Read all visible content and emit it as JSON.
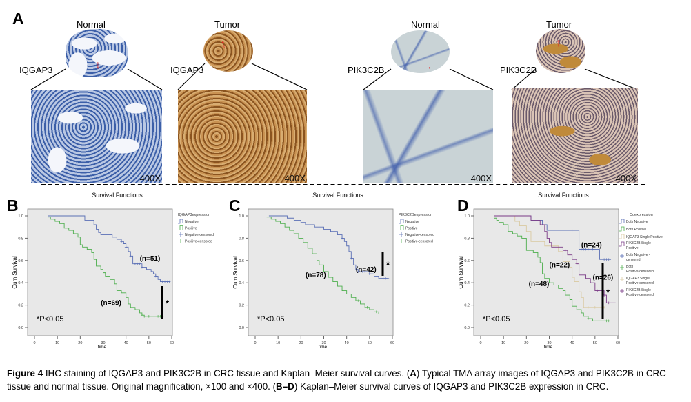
{
  "panel_a": {
    "label": "A",
    "images": [
      {
        "title": "Normal",
        "marker": "IQGAP3",
        "magnification": "400X",
        "tissue": "normal"
      },
      {
        "title": "Tumor",
        "marker": "IQGAP3",
        "magnification": "400X",
        "tissue": "tumor"
      },
      {
        "title": "Normal",
        "marker": "PIK3C2B",
        "magnification": "400X",
        "tissue": "normal"
      },
      {
        "title": "Tumor",
        "marker": "PIK3C2B",
        "magnification": "400X",
        "tissue": "tumor"
      }
    ]
  },
  "colors": {
    "blue": "#5a6fb5",
    "green": "#4cae4c",
    "tan": "#d9c9a0",
    "purple": "#7a3a86",
    "plot_bg": "#e8e8e8"
  },
  "chart_data": [
    {
      "panel": "B",
      "type": "line",
      "title": "Survival Functions",
      "xlabel": "time",
      "ylabel": "Cum Survival",
      "xlim": [
        0,
        60
      ],
      "ylim": [
        0,
        1
      ],
      "xticks": [
        "0",
        "10",
        "20",
        "30",
        "40",
        "50",
        "60"
      ],
      "yticks": [
        "0.0",
        "0.2",
        "0.4",
        "0.6",
        "0.8",
        "1.0"
      ],
      "legend_title": "IQGAP3expression",
      "legend": [
        "Negative",
        "Positive",
        "Negative-censored",
        "Positive-censored"
      ],
      "annotation_p": "*P<0.05",
      "significance": "*",
      "series": [
        {
          "name": "Negative",
          "color": "#5a6fb5",
          "n_label": "(n=51)",
          "n_pos": [
            46,
            0.6
          ],
          "steps": [
            [
              6,
              1.0
            ],
            [
              22,
              0.96
            ],
            [
              26,
              0.92
            ],
            [
              27,
              0.88
            ],
            [
              28,
              0.85
            ],
            [
              29,
              0.83
            ],
            [
              34,
              0.81
            ],
            [
              36,
              0.79
            ],
            [
              38,
              0.77
            ],
            [
              39,
              0.75
            ],
            [
              40,
              0.72
            ],
            [
              41,
              0.68
            ],
            [
              42,
              0.64
            ],
            [
              43,
              0.57
            ],
            [
              47,
              0.54
            ],
            [
              49,
              0.52
            ],
            [
              51,
              0.5
            ],
            [
              52,
              0.48
            ],
            [
              53,
              0.46
            ],
            [
              54,
              0.43
            ],
            [
              55,
              0.41
            ],
            [
              59,
              0.41
            ]
          ],
          "censored": [
            38,
            40,
            42,
            44,
            45,
            46,
            47,
            53,
            56,
            57,
            58,
            59
          ]
        },
        {
          "name": "Positive",
          "color": "#4cae4c",
          "n_label": "(n=69)",
          "n_pos": [
            29,
            0.2
          ],
          "steps": [
            [
              6,
              0.99
            ],
            [
              7,
              0.97
            ],
            [
              9,
              0.95
            ],
            [
              11,
              0.93
            ],
            [
              13,
              0.89
            ],
            [
              15,
              0.87
            ],
            [
              17,
              0.84
            ],
            [
              19,
              0.81
            ],
            [
              20,
              0.74
            ],
            [
              21,
              0.72
            ],
            [
              23,
              0.7
            ],
            [
              25,
              0.67
            ],
            [
              26,
              0.61
            ],
            [
              27,
              0.55
            ],
            [
              29,
              0.52
            ],
            [
              30,
              0.49
            ],
            [
              31,
              0.46
            ],
            [
              33,
              0.43
            ],
            [
              35,
              0.39
            ],
            [
              36,
              0.33
            ],
            [
              38,
              0.31
            ],
            [
              40,
              0.27
            ],
            [
              41,
              0.21
            ],
            [
              42,
              0.18
            ],
            [
              44,
              0.16
            ],
            [
              46,
              0.13
            ],
            [
              47,
              0.11
            ],
            [
              48,
              0.1
            ],
            [
              56,
              0.1
            ]
          ],
          "censored": [
            47,
            48,
            50,
            54,
            55,
            56
          ]
        }
      ]
    },
    {
      "panel": "C",
      "type": "line",
      "title": "Survival Functions",
      "xlabel": "time",
      "ylabel": "Cum Survival",
      "xlim": [
        0,
        60
      ],
      "ylim": [
        0,
        1
      ],
      "xticks": [
        "0",
        "10",
        "20",
        "30",
        "40",
        "50",
        "60"
      ],
      "yticks": [
        "0.0",
        "0.2",
        "0.4",
        "0.6",
        "0.8",
        "1.0"
      ],
      "legend_title": "PIK3C2Bexpression",
      "legend": [
        "Negative",
        "Positive",
        "Negative-censored",
        "Positive-censored"
      ],
      "annotation_p": "*P<0.05",
      "significance": "*",
      "series": [
        {
          "name": "Negative",
          "color": "#5a6fb5",
          "n_label": "(n=42)",
          "n_pos": [
            44,
            0.5
          ],
          "steps": [
            [
              6,
              1.0
            ],
            [
              14,
              0.98
            ],
            [
              17,
              0.96
            ],
            [
              20,
              0.94
            ],
            [
              22,
              0.92
            ],
            [
              26,
              0.9
            ],
            [
              30,
              0.88
            ],
            [
              33,
              0.86
            ],
            [
              36,
              0.83
            ],
            [
              38,
              0.8
            ],
            [
              39,
              0.77
            ],
            [
              40,
              0.73
            ],
            [
              41,
              0.68
            ],
            [
              42,
              0.62
            ],
            [
              43,
              0.56
            ],
            [
              44,
              0.52
            ],
            [
              45,
              0.5
            ],
            [
              50,
              0.48
            ],
            [
              52,
              0.46
            ],
            [
              54,
              0.44
            ],
            [
              58,
              0.44
            ]
          ],
          "censored": [
            38,
            42,
            45,
            47,
            48,
            50,
            55,
            56,
            57,
            58
          ]
        },
        {
          "name": "Positive",
          "color": "#4cae4c",
          "n_label": "(n=78)",
          "n_pos": [
            22,
            0.45
          ],
          "steps": [
            [
              5,
              0.99
            ],
            [
              7,
              0.97
            ],
            [
              9,
              0.95
            ],
            [
              11,
              0.93
            ],
            [
              13,
              0.9
            ],
            [
              15,
              0.87
            ],
            [
              17,
              0.84
            ],
            [
              19,
              0.8
            ],
            [
              21,
              0.76
            ],
            [
              23,
              0.71
            ],
            [
              25,
              0.66
            ],
            [
              27,
              0.6
            ],
            [
              28,
              0.56
            ],
            [
              30,
              0.5
            ],
            [
              32,
              0.45
            ],
            [
              34,
              0.41
            ],
            [
              36,
              0.37
            ],
            [
              38,
              0.33
            ],
            [
              40,
              0.3
            ],
            [
              42,
              0.27
            ],
            [
              44,
              0.24
            ],
            [
              46,
              0.21
            ],
            [
              48,
              0.18
            ],
            [
              50,
              0.16
            ],
            [
              52,
              0.14
            ],
            [
              54,
              0.12
            ],
            [
              58,
              0.12
            ]
          ],
          "censored": [
            45,
            49,
            53,
            55,
            58
          ]
        }
      ]
    },
    {
      "panel": "D",
      "type": "line",
      "title": "Survival Functions",
      "xlabel": "time",
      "ylabel": "Cum Survival",
      "xlim": [
        0,
        60
      ],
      "ylim": [
        0,
        1
      ],
      "xticks": [
        "0",
        "10",
        "20",
        "30",
        "40",
        "50",
        "60"
      ],
      "yticks": [
        "0.0",
        "0.2",
        "0.4",
        "0.6",
        "0.8",
        "1.0"
      ],
      "legend_title": "Coexpression",
      "legend": [
        "Both Negative",
        "Both Positive",
        "IQGAP3 Single Positive",
        "PIK3C2B Single Positive",
        "Both Negative - censored",
        "Both Positive-censored",
        "IQGAP3 Single Positive-censored",
        "PIK3C2B Single Positive-censored"
      ],
      "annotation_p": "*P<0.05",
      "significance": "*",
      "series": [
        {
          "name": "Both Negative",
          "color": "#5a6fb5",
          "n_label": "(n=24)",
          "n_pos": [
            44,
            0.72
          ],
          "steps": [
            [
              6,
              1.0
            ],
            [
              22,
              0.96
            ],
            [
              27,
              0.92
            ],
            [
              29,
              0.87
            ],
            [
              43,
              0.7
            ],
            [
              52,
              0.61
            ],
            [
              57,
              0.61
            ]
          ],
          "censored": [
            40,
            44,
            45,
            46,
            47,
            49,
            54,
            55,
            56
          ]
        },
        {
          "name": "Both Positive",
          "color": "#4cae4c",
          "n_label": "(n=48)",
          "n_pos": [
            21,
            0.37
          ],
          "steps": [
            [
              6,
              0.98
            ],
            [
              7,
              0.96
            ],
            [
              8,
              0.94
            ],
            [
              10,
              0.92
            ],
            [
              12,
              0.86
            ],
            [
              14,
              0.84
            ],
            [
              16,
              0.82
            ],
            [
              18,
              0.8
            ],
            [
              20,
              0.69
            ],
            [
              23,
              0.67
            ],
            [
              25,
              0.63
            ],
            [
              26,
              0.58
            ],
            [
              27,
              0.48
            ],
            [
              28,
              0.44
            ],
            [
              30,
              0.4
            ],
            [
              32,
              0.38
            ],
            [
              34,
              0.35
            ],
            [
              36,
              0.33
            ],
            [
              37,
              0.29
            ],
            [
              39,
              0.25
            ],
            [
              40,
              0.19
            ],
            [
              42,
              0.16
            ],
            [
              44,
              0.13
            ],
            [
              45,
              0.1
            ],
            [
              47,
              0.08
            ],
            [
              49,
              0.06
            ],
            [
              56,
              0.06
            ]
          ],
          "censored": [
            47,
            55,
            56
          ]
        },
        {
          "name": "IQGAP3 Single Positive",
          "color": "#d9c9a0",
          "n_label": "(n=22)",
          "n_pos": [
            30,
            0.54
          ],
          "steps": [
            [
              6,
              1.0
            ],
            [
              15,
              0.95
            ],
            [
              17,
              0.91
            ],
            [
              20,
              0.86
            ],
            [
              22,
              0.77
            ],
            [
              28,
              0.73
            ],
            [
              34,
              0.68
            ],
            [
              36,
              0.59
            ],
            [
              39,
              0.54
            ],
            [
              40,
              0.45
            ],
            [
              41,
              0.41
            ],
            [
              43,
              0.32
            ],
            [
              44,
              0.27
            ],
            [
              45,
              0.18
            ],
            [
              54,
              0.18
            ]
          ],
          "censored": [
            47,
            50,
            54
          ]
        },
        {
          "name": "PIK3C2B Single Positive",
          "color": "#7a3a86",
          "n_label": "(n=26)",
          "n_pos": [
            49,
            0.43
          ],
          "steps": [
            [
              6,
              1.0
            ],
            [
              22,
              0.96
            ],
            [
              26,
              0.92
            ],
            [
              28,
              0.86
            ],
            [
              29,
              0.8
            ],
            [
              30,
              0.76
            ],
            [
              31,
              0.72
            ],
            [
              36,
              0.69
            ],
            [
              38,
              0.65
            ],
            [
              40,
              0.61
            ],
            [
              42,
              0.57
            ],
            [
              43,
              0.47
            ],
            [
              46,
              0.44
            ],
            [
              48,
              0.4
            ],
            [
              50,
              0.33
            ],
            [
              54,
              0.29
            ],
            [
              55,
              0.22
            ],
            [
              59,
              0.22
            ]
          ],
          "censored": [
            37,
            42,
            51,
            54,
            56
          ]
        }
      ]
    }
  ],
  "caption": {
    "fig_label": "Figure 4",
    "p1": " IHC staining of IQGAP3 and PIK3C2B in CRC tissue and Kaplan–Meier survival curves. (",
    "b1": "A",
    "p2": ") Typical TMA array images of IQGAP3 and PIK3C2B in CRC tissue and normal tissue. Original magnification, ×100 and ×400. (",
    "b2": "B–D",
    "p3": ") Kaplan–Meier survival curves of IQGAP3 and PIK3C2B expression in CRC."
  }
}
